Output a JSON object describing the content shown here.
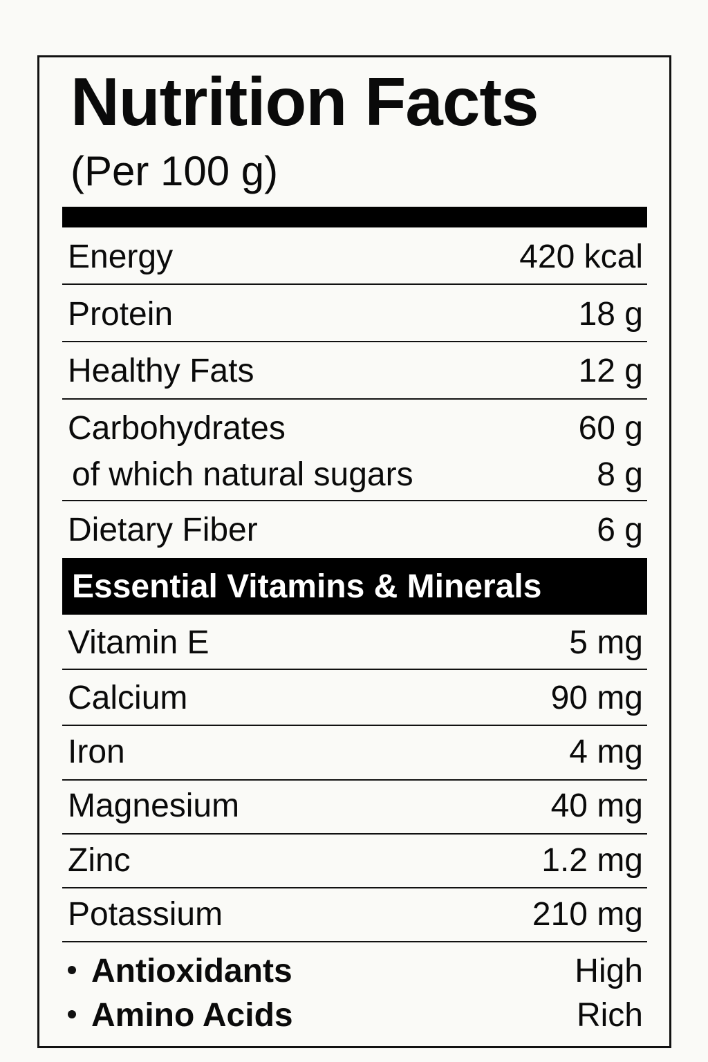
{
  "header": {
    "title": "Nutrition Facts",
    "serving": "(Per 100 g)"
  },
  "nutrients": [
    {
      "label": "Energy",
      "value": "420 kcal"
    },
    {
      "label": "Protein",
      "value": "18 g"
    },
    {
      "label": "Healthy Fats",
      "value": "12 g"
    },
    {
      "label": "Carbohydrates",
      "value": "60 g"
    },
    {
      "label": "of which natural sugars",
      "value": "8 g"
    },
    {
      "label": "Dietary Fiber",
      "value": "6 g"
    }
  ],
  "section_title": "Essential Vitamins & Minerals",
  "minerals": [
    {
      "label": "Vitamin E",
      "value": "5 mg"
    },
    {
      "label": "Calcium",
      "value": "90 mg"
    },
    {
      "label": "Iron",
      "value": "4 mg"
    },
    {
      "label": "Magnesium",
      "value": "40 mg"
    },
    {
      "label": "Zinc",
      "value": "1.2 mg"
    },
    {
      "label": "Potassium",
      "value": "210 mg"
    }
  ],
  "extras": [
    {
      "label": "Antioxidants",
      "value": "High"
    },
    {
      "label": "Amino Acids",
      "value": "Rich"
    }
  ]
}
